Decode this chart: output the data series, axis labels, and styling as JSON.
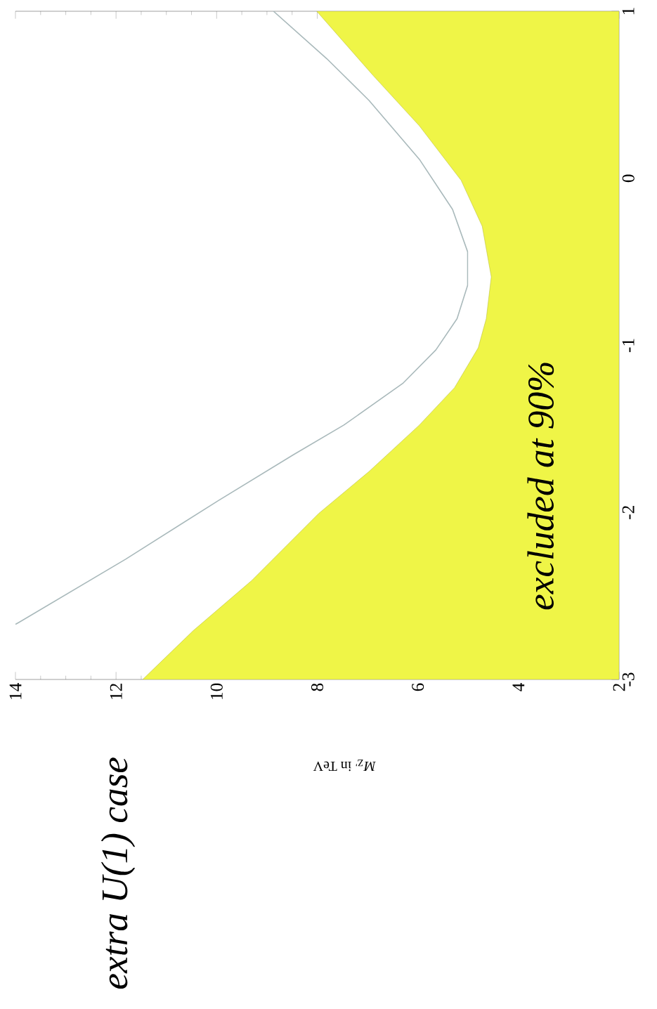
{
  "chart_data": {
    "type": "line",
    "orientation": "horizontal",
    "title": "extra U(1) case",
    "xlabel": "*M*$_{Z'}$ in TeV",
    "xlim": [
      14,
      2
    ],
    "ylim": [
      -3,
      1
    ],
    "xticks": [
      14,
      12,
      10,
      8,
      6,
      4,
      2
    ],
    "yticks": [
      -3,
      -2,
      -1,
      0,
      1
    ],
    "annotations": [
      "excluded at 90%"
    ],
    "series": [
      {
        "type": "area",
        "color": "#eff547",
        "x": [
          -3.0,
          -2.709,
          -2.407,
          -2.006,
          -1.755,
          -1.477,
          -1.253,
          -1.015,
          -0.84,
          -0.59,
          -0.287,
          -0.012,
          0.314,
          0.616,
          1.0
        ],
        "values": [
          11.47,
          10.47,
          9.3,
          7.97,
          6.97,
          5.97,
          5.27,
          4.8,
          4.64,
          4.54,
          4.72,
          5.14,
          5.97,
          6.89,
          8.01
        ]
      },
      {
        "color": "#a9b9bb",
        "x": [
          -2.67,
          -2.658,
          -2.28,
          -1.93,
          -1.654,
          -1.477,
          -1.228,
          -1.027,
          -0.84,
          -0.64,
          -0.44,
          -0.186,
          0.114,
          0.466,
          0.716,
          1.0
        ],
        "values": [
          14.0,
          13.93,
          11.81,
          9.97,
          8.47,
          7.47,
          6.3,
          5.64,
          5.22,
          5.01,
          5.01,
          5.31,
          5.97,
          6.97,
          7.81,
          8.87
        ]
      }
    ]
  }
}
